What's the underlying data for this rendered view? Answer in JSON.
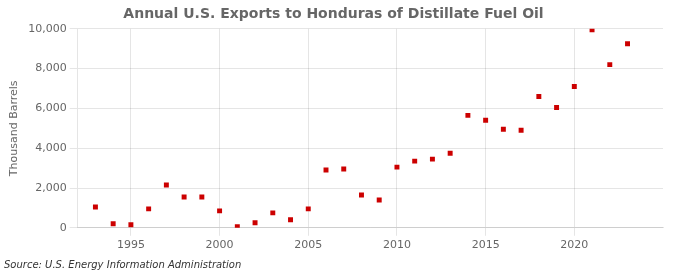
{
  "chart_data": {
    "type": "scatter",
    "title": "Annual U.S. Exports to Honduras of Distillate Fuel Oil",
    "ylabel": "Thousand Barrels",
    "annotations": [
      "Source: U.S. Energy Information Administration"
    ],
    "x": [
      1993,
      1994,
      1995,
      1996,
      1997,
      1998,
      1999,
      2000,
      2001,
      2002,
      2003,
      2004,
      2005,
      2006,
      2007,
      2008,
      2009,
      2010,
      2011,
      2012,
      2013,
      2014,
      2015,
      2016,
      2017,
      2018,
      2019,
      2020,
      2021,
      2022,
      2023
    ],
    "values": [
      1050,
      200,
      150,
      950,
      2150,
      1550,
      1550,
      850,
      50,
      250,
      750,
      400,
      950,
      2900,
      2950,
      1650,
      1400,
      3050,
      3350,
      3450,
      3750,
      5650,
      5400,
      4950,
      4900,
      6600,
      6050,
      7100,
      9950,
      8200,
      9250
    ],
    "color": "#cc0000",
    "marker": "square",
    "xlim": [
      1992,
      2025
    ],
    "xticks": [
      1995,
      2000,
      2005,
      2010,
      2015,
      2020
    ],
    "ylim": [
      0,
      10000
    ],
    "yticks": [
      0,
      {
        "value": 2000,
        "label": "2,000"
      },
      {
        "value": 4000,
        "label": "4,000"
      },
      {
        "value": 6000,
        "label": "6,000"
      },
      {
        "value": 8000,
        "label": "8,000"
      },
      {
        "value": 10000,
        "label": "10,000"
      }
    ],
    "grid": true
  }
}
